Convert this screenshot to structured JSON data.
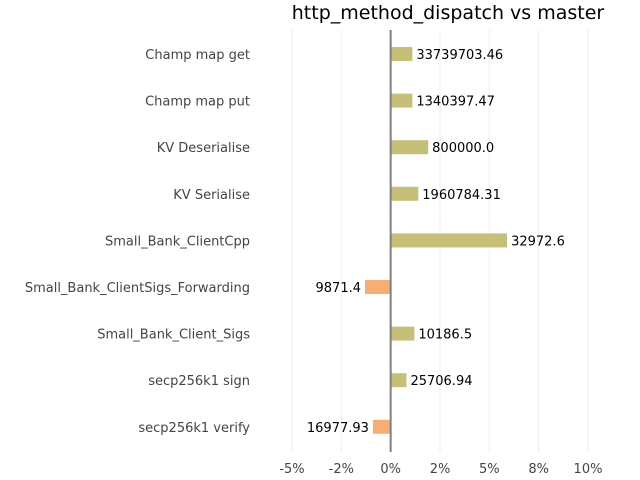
{
  "chart_data": {
    "type": "bar",
    "orientation": "horizontal",
    "title": "http_method_dispatch vs master",
    "categories": [
      "Champ map get",
      "Champ map put",
      "KV Deserialise",
      "KV Serialise",
      "Small_Bank_ClientCpp",
      "Small_Bank_ClientSigs_Forwarding",
      "Small_Bank_Client_Sigs",
      "secp256k1 sign",
      "secp256k1 verify"
    ],
    "values": [
      1.1,
      1.1,
      1.9,
      1.4,
      5.9,
      -1.3,
      1.2,
      0.8,
      -0.9
    ],
    "value_labels": [
      "33739703.46",
      "1340397.47",
      "800000.0",
      "1960784.31",
      "32972.6",
      "9871.4",
      "10186.5",
      "25706.94",
      "16977.93"
    ],
    "xlim": [
      -5,
      10
    ],
    "xticks": [
      -5,
      -2.5,
      0,
      2.5,
      5,
      7.5,
      10
    ],
    "xtick_labels": [
      "-5%",
      "-2%",
      "0%",
      "2%",
      "5%",
      "8%",
      "10%"
    ],
    "grid": true,
    "colors": {
      "positive": "#c5bf7a",
      "negative": "#f5ae73"
    }
  }
}
